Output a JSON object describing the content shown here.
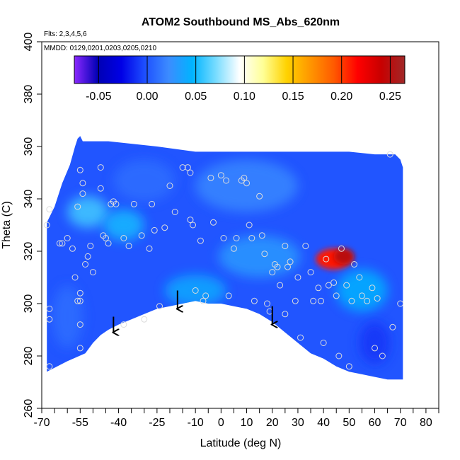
{
  "chart_data": {
    "type": "heatmap",
    "title": "ATOM2 Southbound MS_Abs_620nm",
    "flights_note": "Flts: 2,3,4,5,6",
    "dates_note": "MMDD: 0129,0201,0203,0205,0210",
    "xlabel": "Latitude (deg N)",
    "ylabel": "Theta (C)",
    "xlim": [
      -70,
      85
    ],
    "ylim": [
      260,
      400
    ],
    "x_ticks": [
      -70,
      -65,
      -60,
      -55,
      -50,
      -45,
      -40,
      -35,
      -30,
      -25,
      -20,
      -15,
      -10,
      -5,
      0,
      5,
      10,
      15,
      20,
      25,
      30,
      35,
      40,
      45,
      50,
      55,
      60,
      65,
      70,
      75,
      80,
      85
    ],
    "x_tick_labels": [
      "-70",
      "",
      "",
      "-55",
      "",
      "",
      "-40",
      "",
      "",
      "-25",
      "",
      "",
      "-10",
      "",
      "0",
      "",
      "10",
      "",
      "20",
      "",
      "30",
      "",
      "40",
      "",
      "50",
      "",
      "60",
      "",
      "70",
      "",
      "80",
      ""
    ],
    "y_ticks": [
      260,
      280,
      300,
      320,
      340,
      360,
      380,
      400
    ],
    "y_tick_labels": [
      "260",
      "280",
      "300",
      "320",
      "340",
      "360",
      "380",
      "400"
    ],
    "colorbar": {
      "min": -0.075,
      "max": 0.265,
      "ticks": [
        -0.05,
        0.0,
        0.05,
        0.1,
        0.15,
        0.2,
        0.25
      ],
      "tick_labels": [
        "-0.05",
        "0.00",
        "0.05",
        "0.10",
        "0.15",
        "0.20",
        "0.25"
      ],
      "colors": [
        "#8b28ff",
        "#0000b4",
        "#0000e6",
        "#1e50ff",
        "#3c8cff",
        "#00b4ff",
        "#78dcff",
        "#ffffff",
        "#ffff96",
        "#ffd200",
        "#ff9600",
        "#ff5a00",
        "#ff0000",
        "#c80000",
        "#a02828"
      ]
    },
    "domain_top": [
      [
        -68,
        331
      ],
      [
        -65,
        337
      ],
      [
        -62,
        346
      ],
      [
        -59,
        353
      ],
      [
        -57,
        360
      ],
      [
        -56,
        363
      ],
      [
        -55,
        364
      ],
      [
        -54,
        362
      ],
      [
        -44,
        362
      ],
      [
        -25,
        360
      ],
      [
        -10,
        358
      ],
      [
        10,
        358
      ],
      [
        30,
        358
      ],
      [
        50,
        358
      ],
      [
        60,
        357
      ],
      [
        65,
        357
      ],
      [
        68,
        357
      ],
      [
        70,
        355
      ],
      [
        71,
        352
      ]
    ],
    "domain_bottom": [
      [
        -68,
        274
      ],
      [
        -60,
        278
      ],
      [
        -53,
        281
      ],
      [
        -50,
        285
      ],
      [
        -47,
        288
      ],
      [
        -44,
        290
      ],
      [
        -40,
        292
      ],
      [
        -35,
        294
      ],
      [
        -30,
        296
      ],
      [
        -25,
        298
      ],
      [
        -20,
        299
      ],
      [
        -15,
        300
      ],
      [
        -10,
        301
      ],
      [
        -5,
        300
      ],
      [
        0,
        300
      ],
      [
        5,
        299
      ],
      [
        10,
        298
      ],
      [
        15,
        296
      ],
      [
        20,
        293
      ],
      [
        25,
        289
      ],
      [
        30,
        285
      ],
      [
        35,
        281
      ],
      [
        40,
        279
      ],
      [
        45,
        276
      ],
      [
        50,
        274
      ],
      [
        55,
        273
      ],
      [
        60,
        272
      ],
      [
        65,
        271
      ],
      [
        70,
        271
      ],
      [
        71,
        271
      ]
    ],
    "value_background": 0.0,
    "value_hotspots": [
      {
        "x": 44,
        "y": 317,
        "rx": 7,
        "ry": 4,
        "value": 0.21
      },
      {
        "x": 48,
        "y": 318,
        "rx": 4,
        "ry": 3,
        "value": 0.25
      },
      {
        "x": -52,
        "y": 335,
        "rx": 8,
        "ry": 6,
        "value": 0.06
      },
      {
        "x": -38,
        "y": 330,
        "rx": 8,
        "ry": 6,
        "value": 0.05
      },
      {
        "x": -10,
        "y": 305,
        "rx": 12,
        "ry": 6,
        "value": 0.04
      },
      {
        "x": 15,
        "y": 318,
        "rx": 16,
        "ry": 8,
        "value": 0.03
      },
      {
        "x": 55,
        "y": 305,
        "rx": 10,
        "ry": 8,
        "value": 0.045
      },
      {
        "x": -30,
        "y": 347,
        "rx": 12,
        "ry": 8,
        "value": 0.01
      },
      {
        "x": 10,
        "y": 345,
        "rx": 20,
        "ry": 10,
        "value": 0.02
      },
      {
        "x": 60,
        "y": 285,
        "rx": 6,
        "ry": 8,
        "value": -0.01
      },
      {
        "x": -60,
        "y": 295,
        "rx": 6,
        "ry": 12,
        "value": 0.01
      }
    ],
    "sample_points": [
      {
        "x": -68,
        "y": 330
      },
      {
        "x": -67,
        "y": 336
      },
      {
        "x": -67,
        "y": 298
      },
      {
        "x": -67,
        "y": 294
      },
      {
        "x": -67,
        "y": 276
      },
      {
        "x": -63,
        "y": 323
      },
      {
        "x": -62,
        "y": 323
      },
      {
        "x": -60,
        "y": 325
      },
      {
        "x": -58,
        "y": 321
      },
      {
        "x": -56,
        "y": 337
      },
      {
        "x": -55,
        "y": 351
      },
      {
        "x": -54,
        "y": 346
      },
      {
        "x": -54,
        "y": 342
      },
      {
        "x": -57,
        "y": 310
      },
      {
        "x": -56,
        "y": 301
      },
      {
        "x": -55,
        "y": 304
      },
      {
        "x": -55,
        "y": 301
      },
      {
        "x": -55,
        "y": 292
      },
      {
        "x": -55,
        "y": 283
      },
      {
        "x": -53,
        "y": 315
      },
      {
        "x": -52,
        "y": 318
      },
      {
        "x": -51,
        "y": 322
      },
      {
        "x": -50,
        "y": 312
      },
      {
        "x": -47,
        "y": 352
      },
      {
        "x": -47,
        "y": 344
      },
      {
        "x": -46,
        "y": 326
      },
      {
        "x": -45,
        "y": 325
      },
      {
        "x": -44,
        "y": 323
      },
      {
        "x": -43,
        "y": 338
      },
      {
        "x": -42,
        "y": 339
      },
      {
        "x": -41,
        "y": 338
      },
      {
        "x": -38,
        "y": 325
      },
      {
        "x": -38,
        "y": 292
      },
      {
        "x": -36,
        "y": 322
      },
      {
        "x": -34,
        "y": 338
      },
      {
        "x": -31,
        "y": 326
      },
      {
        "x": -30,
        "y": 294
      },
      {
        "x": -28,
        "y": 321
      },
      {
        "x": -27,
        "y": 338
      },
      {
        "x": -26,
        "y": 328
      },
      {
        "x": -24,
        "y": 299
      },
      {
        "x": -22,
        "y": 329
      },
      {
        "x": -20,
        "y": 345
      },
      {
        "x": -18,
        "y": 335
      },
      {
        "x": -15,
        "y": 352
      },
      {
        "x": -13,
        "y": 352
      },
      {
        "x": -12,
        "y": 350
      },
      {
        "x": -12,
        "y": 332
      },
      {
        "x": -11,
        "y": 330
      },
      {
        "x": -10,
        "y": 305
      },
      {
        "x": -8,
        "y": 324
      },
      {
        "x": -7,
        "y": 301
      },
      {
        "x": -6,
        "y": 303
      },
      {
        "x": -4,
        "y": 348
      },
      {
        "x": -3,
        "y": 331
      },
      {
        "x": 0,
        "y": 349
      },
      {
        "x": 1,
        "y": 325
      },
      {
        "x": 2,
        "y": 347
      },
      {
        "x": 3,
        "y": 303
      },
      {
        "x": 5,
        "y": 321
      },
      {
        "x": 6,
        "y": 325
      },
      {
        "x": 8,
        "y": 347
      },
      {
        "x": 9,
        "y": 348
      },
      {
        "x": 10,
        "y": 346
      },
      {
        "x": 11,
        "y": 330
      },
      {
        "x": 12,
        "y": 325
      },
      {
        "x": 13,
        "y": 301
      },
      {
        "x": 15,
        "y": 341
      },
      {
        "x": 16,
        "y": 326
      },
      {
        "x": 17,
        "y": 319
      },
      {
        "x": 18,
        "y": 300
      },
      {
        "x": 19,
        "y": 297
      },
      {
        "x": 20,
        "y": 312
      },
      {
        "x": 21,
        "y": 315
      },
      {
        "x": 22,
        "y": 314
      },
      {
        "x": 23,
        "y": 307
      },
      {
        "x": 25,
        "y": 296
      },
      {
        "x": 25,
        "y": 322
      },
      {
        "x": 26,
        "y": 314
      },
      {
        "x": 27,
        "y": 316
      },
      {
        "x": 29,
        "y": 301
      },
      {
        "x": 30,
        "y": 310
      },
      {
        "x": 31,
        "y": 287
      },
      {
        "x": 33,
        "y": 322
      },
      {
        "x": 35,
        "y": 312
      },
      {
        "x": 36,
        "y": 301
      },
      {
        "x": 38,
        "y": 306
      },
      {
        "x": 39,
        "y": 301
      },
      {
        "x": 40,
        "y": 285
      },
      {
        "x": 41,
        "y": 317
      },
      {
        "x": 42,
        "y": 307
      },
      {
        "x": 44,
        "y": 308
      },
      {
        "x": 45,
        "y": 303
      },
      {
        "x": 46,
        "y": 280
      },
      {
        "x": 47,
        "y": 321
      },
      {
        "x": 49,
        "y": 307
      },
      {
        "x": 50,
        "y": 276
      },
      {
        "x": 51,
        "y": 301
      },
      {
        "x": 52,
        "y": 315
      },
      {
        "x": 54,
        "y": 310
      },
      {
        "x": 55,
        "y": 303
      },
      {
        "x": 57,
        "y": 301
      },
      {
        "x": 59,
        "y": 306
      },
      {
        "x": 60,
        "y": 283
      },
      {
        "x": 61,
        "y": 302
      },
      {
        "x": 63,
        "y": 280
      },
      {
        "x": 66,
        "y": 357
      },
      {
        "x": 67,
        "y": 291
      },
      {
        "x": 70,
        "y": 300
      }
    ],
    "arrows": [
      {
        "x": -42,
        "y_from": 295,
        "y_to": 289
      },
      {
        "x": -17,
        "y_from": 305,
        "y_to": 298
      },
      {
        "x": 20,
        "y_from": 299,
        "y_to": 292
      }
    ]
  }
}
